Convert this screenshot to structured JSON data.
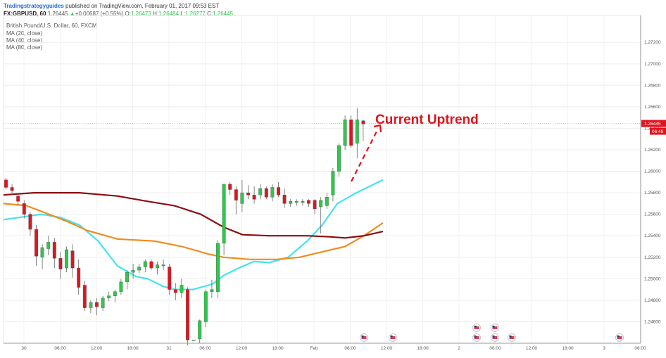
{
  "header": {
    "brand": "Tradingstrategyguides",
    "published": "published on TradingView.com, February 01, 2017 09:53 EST",
    "symbol": "FX:GBPUSD, 60",
    "last": "1.26445",
    "change": "+0.00687 (+0.55%)",
    "o_label": "O:",
    "o_value": "1.26473",
    "h_label": "H:",
    "h_value": "1.26484",
    "l_label": "L:",
    "l_value": "1.26277",
    "c_label": "C:",
    "c_value": "1.26445",
    "arrow": "▲"
  },
  "indicators": {
    "title": "British Pound/U.S. Dollar, 60, FXCM",
    "ma1": "MA (20, close)",
    "ma2": "MA (40, close)",
    "ma3": "MA (80, close)"
  },
  "price_label": "1.26445",
  "time_label": "06:49",
  "annotation": "Current Uptrend",
  "colors": {
    "up": "#2cc94a",
    "down": "#e0141e",
    "ma20": "#44e2ee",
    "ma40": "#f08c1e",
    "ma80": "#8b0f0f",
    "annotation": "#e0141e"
  },
  "chart_data": {
    "type": "candlestick",
    "ylim": [
      1.244,
      1.2745
    ],
    "y_ticks": [
      "1.24600",
      "1.24800",
      "1.25000",
      "1.25200",
      "1.25400",
      "1.25600",
      "1.25800",
      "1.26000",
      "1.26200",
      "1.26400",
      "1.26600",
      "1.26800",
      "1.27000",
      "1.27200"
    ],
    "x_ticks": [
      "30",
      "06:00",
      "12:00",
      "18:00",
      "31",
      "06:00",
      "12:00",
      "18:00",
      "Feb",
      "06:00",
      "12:00",
      "18:00",
      "2",
      "06:00",
      "12:00",
      "18:00",
      "3",
      "06:00"
    ],
    "ohlc": [
      [
        1.2592,
        1.2594,
        1.2583,
        1.2585
      ],
      [
        1.2585,
        1.2588,
        1.2578,
        1.2582
      ],
      [
        1.2577,
        1.258,
        1.2568,
        1.2572
      ],
      [
        1.257,
        1.2573,
        1.2556,
        1.256
      ],
      [
        1.256,
        1.2562,
        1.254,
        1.2546
      ],
      [
        1.2546,
        1.255,
        1.2512,
        1.2521
      ],
      [
        1.252,
        1.2532,
        1.2509,
        1.2529
      ],
      [
        1.2528,
        1.254,
        1.2522,
        1.2534
      ],
      [
        1.2534,
        1.2538,
        1.251,
        1.2519
      ],
      [
        1.2519,
        1.2525,
        1.25,
        1.2509
      ],
      [
        1.251,
        1.253,
        1.2506,
        1.2527
      ],
      [
        1.2526,
        1.2532,
        1.2501,
        1.251
      ],
      [
        1.251,
        1.2518,
        1.2485,
        1.2492
      ],
      [
        1.2494,
        1.2498,
        1.247,
        1.2473
      ],
      [
        1.2473,
        1.248,
        1.2468,
        1.2478
      ],
      [
        1.2478,
        1.2482,
        1.2466,
        1.2474
      ],
      [
        1.2473,
        1.2484,
        1.247,
        1.2482
      ],
      [
        1.2482,
        1.2488,
        1.2479,
        1.2484
      ],
      [
        1.2484,
        1.249,
        1.2478,
        1.2488
      ],
      [
        1.2488,
        1.25,
        1.2485,
        1.2497
      ],
      [
        1.2497,
        1.2508,
        1.249,
        1.2506
      ],
      [
        1.2506,
        1.2514,
        1.25,
        1.2508
      ],
      [
        1.2508,
        1.2514,
        1.2505,
        1.2511
      ],
      [
        1.2511,
        1.2518,
        1.2506,
        1.2516
      ],
      [
        1.2516,
        1.2518,
        1.2508,
        1.251
      ],
      [
        1.251,
        1.2516,
        1.2504,
        1.2513
      ],
      [
        1.2512,
        1.2518,
        1.2508,
        1.2513
      ],
      [
        1.2511,
        1.2514,
        1.2485,
        1.249
      ],
      [
        1.249,
        1.2496,
        1.248,
        1.2487
      ],
      [
        1.2487,
        1.25,
        1.2482,
        1.2494
      ],
      [
        1.249,
        1.2492,
        1.2438,
        1.2443
      ],
      [
        1.2443,
        1.244,
        1.244,
        1.2443
      ],
      [
        1.2444,
        1.2462,
        1.244,
        1.2461
      ],
      [
        1.246,
        1.249,
        1.2455,
        1.2488
      ],
      [
        1.2488,
        1.2499,
        1.2482,
        1.249
      ],
      [
        1.2488,
        1.2536,
        1.2482,
        1.2533
      ],
      [
        1.2533,
        1.2588,
        1.2522,
        1.2588
      ],
      [
        1.2588,
        1.259,
        1.2578,
        1.2583
      ],
      [
        1.2583,
        1.2586,
        1.256,
        1.2573
      ],
      [
        1.257,
        1.2592,
        1.2562,
        1.258
      ],
      [
        1.258,
        1.2587,
        1.2574,
        1.2578
      ],
      [
        1.2578,
        1.2586,
        1.257,
        1.2574
      ],
      [
        1.2578,
        1.2588,
        1.2574,
        1.2584
      ],
      [
        1.2584,
        1.2586,
        1.2574,
        1.2576
      ],
      [
        1.2576,
        1.2588,
        1.2572,
        1.2585
      ],
      [
        1.2585,
        1.259,
        1.2576,
        1.2578
      ],
      [
        1.2578,
        1.2584,
        1.2566,
        1.257
      ],
      [
        1.257,
        1.2574,
        1.2567,
        1.2572
      ],
      [
        1.2571,
        1.2574,
        1.2568,
        1.2572
      ],
      [
        1.2571,
        1.2574,
        1.2568,
        1.2572
      ],
      [
        1.2573,
        1.2574,
        1.2567,
        1.257
      ],
      [
        1.2573,
        1.2574,
        1.256,
        1.2565
      ],
      [
        1.2567,
        1.2576,
        1.2542,
        1.2573
      ],
      [
        1.2568,
        1.258,
        1.2565,
        1.2576
      ],
      [
        1.2578,
        1.2603,
        1.2572,
        1.26
      ],
      [
        1.26,
        1.2626,
        1.2595,
        1.2624
      ],
      [
        1.2624,
        1.2652,
        1.262,
        1.2648
      ],
      [
        1.2648,
        1.2652,
        1.2622,
        1.2624
      ],
      [
        1.2626,
        1.2659,
        1.2612,
        1.2648
      ],
      [
        1.2647,
        1.2648,
        1.2628,
        1.2644
      ]
    ],
    "series": [
      {
        "name": "MA (20, close)",
        "values": [
          [
            0,
            1.2555
          ],
          [
            0.1,
            1.256
          ],
          [
            0.15,
            1.2557
          ],
          [
            0.2,
            1.255
          ],
          [
            0.25,
            1.2535
          ],
          [
            0.3,
            1.2512
          ],
          [
            0.35,
            1.2502
          ],
          [
            0.38,
            1.25
          ],
          [
            0.42,
            1.2493
          ],
          [
            0.45,
            1.249
          ],
          [
            0.5,
            1.249
          ],
          [
            0.55,
            1.2495
          ],
          [
            0.58,
            1.2503
          ],
          [
            0.62,
            1.251
          ],
          [
            0.66,
            1.2516
          ],
          [
            0.7,
            1.2515
          ],
          [
            0.75,
            1.252
          ],
          [
            0.8,
            1.2535
          ],
          [
            0.84,
            1.255
          ],
          [
            0.88,
            1.257
          ],
          [
            0.93,
            1.258
          ],
          [
            1,
            1.2592
          ]
        ]
      },
      {
        "name": "MA (40, close)",
        "values": [
          [
            0,
            1.257
          ],
          [
            0.06,
            1.2568
          ],
          [
            0.12,
            1.256
          ],
          [
            0.17,
            1.2553
          ],
          [
            0.22,
            1.2545
          ],
          [
            0.3,
            1.2537
          ],
          [
            0.4,
            1.2535
          ],
          [
            0.47,
            1.253
          ],
          [
            0.54,
            1.2523
          ],
          [
            0.58,
            1.252
          ],
          [
            0.65,
            1.2518
          ],
          [
            0.72,
            1.2518
          ],
          [
            0.78,
            1.252
          ],
          [
            0.84,
            1.2525
          ],
          [
            0.9,
            1.253
          ],
          [
            0.95,
            1.254
          ],
          [
            1,
            1.2552
          ]
        ]
      },
      {
        "name": "MA (80, close)",
        "values": [
          [
            0,
            1.2578
          ],
          [
            0.08,
            1.258
          ],
          [
            0.2,
            1.258
          ],
          [
            0.3,
            1.2577
          ],
          [
            0.38,
            1.2572
          ],
          [
            0.45,
            1.2568
          ],
          [
            0.52,
            1.256
          ],
          [
            0.58,
            1.2548
          ],
          [
            0.63,
            1.2541
          ],
          [
            0.7,
            1.254
          ],
          [
            0.8,
            1.254
          ],
          [
            0.86,
            1.2539
          ],
          [
            0.9,
            1.2538
          ],
          [
            0.95,
            1.254
          ],
          [
            1,
            1.2544
          ]
        ]
      }
    ],
    "annotation": "Current Uptrend"
  }
}
